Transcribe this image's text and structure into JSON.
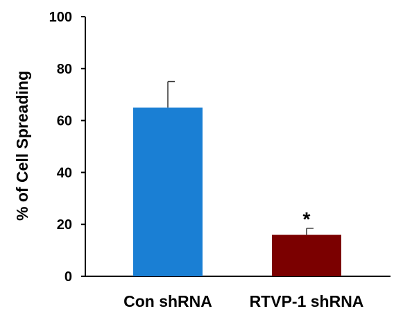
{
  "chart_data": {
    "type": "bar",
    "categories": [
      "Con shRNA",
      "RTVP-1 shRNA"
    ],
    "values": [
      65,
      16
    ],
    "errors": [
      10,
      2.5
    ],
    "colors": [
      "#1a7fd4",
      "#7b0000"
    ],
    "annotations": [
      "",
      "*"
    ],
    "ylabel": "% of Cell Spreading",
    "ylim": [
      0,
      100
    ],
    "yticks": [
      0,
      20,
      40,
      60,
      80,
      100
    ],
    "grid": false,
    "legend": "none"
  }
}
